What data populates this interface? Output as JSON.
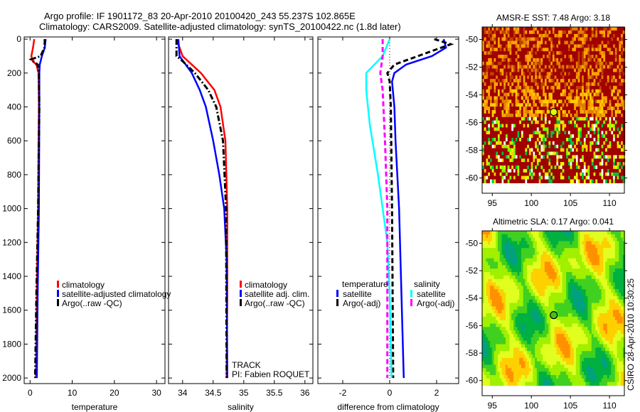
{
  "title": {
    "line1": "Argo profile: IF 1901172_83 20-Apr-2010 20100420_243 55.237S 102.865E",
    "line2": "Climatology: CARS2009. Satellite-adjusted climatology: synTS_20100422.nc (1.8d later)"
  },
  "footer_vertical": "CSIRO 28-Apr-2010 10:30:25",
  "chart_data": [
    {
      "type": "line",
      "name": "temperature-profile",
      "xlabel": "temperature",
      "ylabel": "",
      "xlim": [
        -1.4,
        32
      ],
      "ylim": [
        2033,
        -13
      ],
      "xticks": [
        0,
        10,
        20,
        30
      ],
      "yticks": [
        0,
        200,
        400,
        600,
        800,
        1000,
        1200,
        1400,
        1600,
        1800,
        2000
      ],
      "legend": [
        "climatology",
        "satellite-adjusted climatology",
        "Argo(..raw -QC)"
      ],
      "legend_placement": "lower-left",
      "series": [
        {
          "name": "climatology",
          "color": "#ff0000",
          "style": "solid",
          "depth": [
            0,
            50,
            100,
            130,
            150,
            200,
            400,
            600,
            1000,
            1500,
            2000
          ],
          "values": [
            1.0,
            0.7,
            0.3,
            0.6,
            1.5,
            2.0,
            2.1,
            2.0,
            1.9,
            1.6,
            1.4
          ]
        },
        {
          "name": "satellite-adjusted climatology",
          "color": "#0000ff",
          "style": "solid",
          "depth": [
            0,
            50,
            100,
            150,
            200,
            400,
            1000,
            1500,
            2000
          ],
          "values": [
            3.7,
            3.5,
            2.8,
            2.3,
            2.2,
            2.2,
            2.1,
            1.8,
            1.6
          ]
        },
        {
          "name": "Argo(..raw -QC)",
          "color": "#000000",
          "style": "dashdot",
          "depth": [
            0,
            50,
            100,
            120,
            150,
            200,
            400,
            1000,
            1500,
            2000
          ],
          "values": [
            3.5,
            3.4,
            2.5,
            0.2,
            1.8,
            2.1,
            2.2,
            1.9,
            1.5,
            1.2
          ]
        }
      ]
    },
    {
      "type": "line",
      "name": "salinity-profile",
      "xlabel": "salinity",
      "xlim": [
        33.77,
        36.13
      ],
      "ylim": [
        2033,
        -13
      ],
      "xticks": [
        34,
        34.5,
        35,
        35.5,
        36
      ],
      "legend": [
        "climatology",
        "satellite adj. clim.",
        "Argo(..raw -QC)"
      ],
      "legend_placement": "lower-right",
      "annotations": [
        "TRACK",
        "PI: Fabien ROQUET"
      ],
      "series": [
        {
          "name": "climatology",
          "color": "#ff0000",
          "style": "solid",
          "depth": [
            0,
            50,
            100,
            150,
            200,
            300,
            400,
            600,
            1000,
            1500,
            2000
          ],
          "values": [
            33.9,
            33.95,
            34.0,
            34.15,
            34.3,
            34.52,
            34.62,
            34.7,
            34.73,
            34.73,
            34.72
          ]
        },
        {
          "name": "satellite adj. clim.",
          "color": "#0000ff",
          "style": "solid",
          "depth": [
            0,
            100,
            150,
            200,
            300,
            400,
            600,
            800,
            1000,
            1300,
            2000
          ],
          "values": [
            33.93,
            33.95,
            34.05,
            34.15,
            34.28,
            34.38,
            34.5,
            34.6,
            34.68,
            34.72,
            34.73
          ]
        },
        {
          "name": "Argo(..raw -QC)",
          "color": "#000000",
          "style": "dashdot",
          "depth": [
            0,
            100,
            130,
            200,
            300,
            400,
            600,
            1000,
            2000
          ],
          "values": [
            33.9,
            33.9,
            34.0,
            34.2,
            34.42,
            34.55,
            34.66,
            34.71,
            34.72
          ]
        }
      ]
    },
    {
      "type": "line",
      "name": "difference-profile",
      "xlabel": "difference from climatology",
      "xlim": [
        -3.06,
        2.94
      ],
      "ylim": [
        2033,
        -13
      ],
      "xticks": [
        -2,
        0,
        2
      ],
      "legend_groups": [
        {
          "heading": "temperature",
          "items": [
            "satellite",
            "Argo(-adj)"
          ]
        },
        {
          "heading": "salinity",
          "items": [
            "satellite",
            "Argo(-adj)"
          ]
        }
      ],
      "series": [
        {
          "name": "temperature satellite",
          "color": "#0000ff",
          "style": "solid",
          "depth": [
            0,
            50,
            100,
            150,
            200,
            250,
            400,
            600,
            1000,
            1500,
            2000
          ],
          "values": [
            2.3,
            2.4,
            1.8,
            0.7,
            0.2,
            0.1,
            0.2,
            0.25,
            0.4,
            0.5,
            0.6
          ]
        },
        {
          "name": "temperature Argo(-adj)",
          "color": "#000000",
          "style": "dashed",
          "depth": [
            0,
            30,
            80,
            150,
            200,
            250,
            400,
            1000,
            2000
          ],
          "values": [
            1.9,
            2.6,
            1.6,
            0.2,
            -0.1,
            0.0,
            0.05,
            0.1,
            0.15
          ]
        },
        {
          "name": "salinity satellite",
          "color": "#00ffff",
          "style": "solid",
          "depth": [
            0,
            100,
            200,
            300,
            500,
            800,
            1200,
            1500,
            2000
          ],
          "values": [
            0.0,
            -0.3,
            -1.0,
            -1.0,
            -0.85,
            -0.5,
            -0.1,
            0.0,
            0.08
          ]
        },
        {
          "name": "salinity Argo(-adj)",
          "color": "#ff00ff",
          "style": "dashed",
          "depth": [
            0,
            100,
            200,
            300,
            600,
            1000,
            2000
          ],
          "values": [
            -0.3,
            -0.3,
            -0.4,
            -0.3,
            -0.2,
            -0.1,
            -0.1
          ]
        }
      ]
    },
    {
      "type": "heatmap",
      "name": "sst-map",
      "title": "AMSR-E SST: 7.48 Argo: 3.18",
      "xlim": [
        93.7,
        111.9
      ],
      "ylim": [
        -61.1,
        -49.1
      ],
      "xticks": [
        95,
        100,
        105,
        110
      ],
      "yticks": [
        -50,
        -52,
        -54,
        -56,
        -58,
        -60
      ],
      "marker": {
        "lon": 102.865,
        "lat": -55.237
      },
      "palette": [
        "#a00000",
        "#c04000",
        "#e08000",
        "#ffa500",
        "#ffd000",
        "#e0ff00",
        "#80ff00",
        "#00c040",
        "#00d0d0",
        "#0080ff"
      ]
    },
    {
      "type": "heatmap",
      "name": "sla-map",
      "title": "Altimetric SLA: 0.17 Argo: 0.041",
      "xlim": [
        93.7,
        111.9
      ],
      "ylim": [
        -61.1,
        -49.1
      ],
      "xticks": [
        95,
        100,
        105,
        110
      ],
      "yticks": [
        -50,
        -52,
        -54,
        -56,
        -58,
        -60
      ],
      "marker": {
        "lon": 102.865,
        "lat": -55.237
      },
      "palette": [
        "#00a080",
        "#00b040",
        "#40d020",
        "#a0f000",
        "#e0ff20",
        "#ffd000",
        "#ff9000"
      ]
    }
  ]
}
